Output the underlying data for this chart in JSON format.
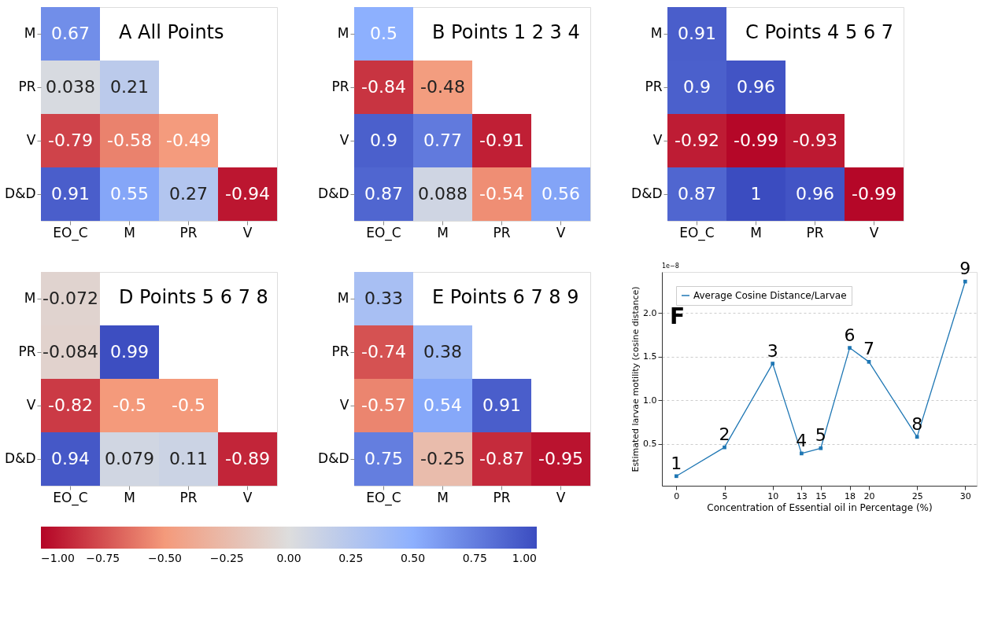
{
  "chart_data": [
    {
      "type": "heatmap",
      "title": "A All Points",
      "categories": [
        "EO_C",
        "M",
        "PR",
        "V"
      ],
      "y_categories": [
        "M",
        "PR",
        "V",
        "D&D"
      ],
      "cells": [
        [
          0.67,
          null,
          null,
          null
        ],
        [
          0.038,
          0.21,
          null,
          null
        ],
        [
          -0.79,
          -0.58,
          -0.49,
          null
        ],
        [
          0.91,
          0.55,
          0.27,
          -0.94
        ]
      ],
      "data_labels": true,
      "clim": [
        -1,
        1
      ],
      "cticks": [
        {
          "value": -1,
          "label": "−1.00"
        },
        {
          "value": -0.75,
          "label": "−0.75"
        },
        {
          "value": -0.5,
          "label": "−0.50"
        },
        {
          "value": -0.25,
          "label": "−0.25"
        },
        {
          "value": 0,
          "label": "0.00"
        },
        {
          "value": 0.25,
          "label": "0.25"
        },
        {
          "value": 0.5,
          "label": "0.50"
        },
        {
          "value": 0.75,
          "label": "0.75"
        },
        {
          "value": 1,
          "label": "1.00"
        }
      ]
    },
    {
      "type": "heatmap",
      "title": "B Points 1 2 3 4",
      "categories": [
        "EO_C",
        "M",
        "PR",
        "V"
      ],
      "y_categories": [
        "M",
        "PR",
        "V",
        "D&D"
      ],
      "cells": [
        [
          0.5,
          null,
          null,
          null
        ],
        [
          -0.84,
          -0.48,
          null,
          null
        ],
        [
          0.9,
          0.77,
          -0.91,
          null
        ],
        [
          0.87,
          0.088,
          -0.54,
          0.56
        ]
      ],
      "data_labels": true
    },
    {
      "type": "heatmap",
      "title": "C Points 4 5 6 7",
      "categories": [
        "EO_C",
        "M",
        "PR",
        "V"
      ],
      "y_categories": [
        "M",
        "PR",
        "V",
        "D&D"
      ],
      "cells": [
        [
          0.91,
          null,
          null,
          null
        ],
        [
          0.9,
          0.96,
          null,
          null
        ],
        [
          -0.92,
          -0.99,
          -0.93,
          null
        ],
        [
          0.87,
          1,
          0.96,
          -0.99
        ]
      ],
      "data_labels": true
    },
    {
      "type": "heatmap",
      "title": "D Points 5 6 7 8",
      "categories": [
        "EO_C",
        "M",
        "PR",
        "V"
      ],
      "y_categories": [
        "M",
        "PR",
        "V",
        "D&D"
      ],
      "cells": [
        [
          -0.072,
          null,
          null,
          null
        ],
        [
          -0.084,
          0.99,
          null,
          null
        ],
        [
          -0.82,
          -0.5,
          -0.5,
          null
        ],
        [
          0.94,
          0.079,
          0.11,
          -0.89
        ]
      ],
      "data_labels": true
    },
    {
      "type": "heatmap",
      "title": "E Points 6 7 8 9",
      "categories": [
        "EO_C",
        "M",
        "PR",
        "V"
      ],
      "y_categories": [
        "M",
        "PR",
        "V",
        "D&D"
      ],
      "cells": [
        [
          0.33,
          null,
          null,
          null
        ],
        [
          -0.74,
          0.38,
          null,
          null
        ],
        [
          -0.57,
          0.54,
          0.91,
          null
        ],
        [
          0.75,
          -0.25,
          -0.87,
          -0.95
        ]
      ],
      "data_labels": true
    },
    {
      "type": "line",
      "xlabel": "Concentration of Essential oil in Percentage (%)",
      "ylabel": "Estimated larvae motility (cosine distance)",
      "x": [
        0,
        5,
        10,
        13,
        15,
        18,
        20,
        25,
        30
      ],
      "series": [
        {
          "name": "Average Cosine Distance/Larvae",
          "color": "#1f77b4",
          "values": [
            0.13,
            0.46,
            1.42,
            0.39,
            0.45,
            1.6,
            1.44,
            0.58,
            2.36
          ]
        }
      ],
      "xlim": [
        -1.5,
        31.2
      ],
      "xticks": [
        0,
        5,
        10,
        13,
        15,
        18,
        20,
        25,
        30
      ],
      "ylim": [
        0.02,
        2.47
      ],
      "yticks": [
        0.5,
        {
          "value": 1,
          "label": "1.0"
        },
        1.5,
        {
          "value": 2,
          "label": "2.0"
        }
      ],
      "grid": "y",
      "marker": "square",
      "line_style": "solid",
      "legend": "top left",
      "annotations": [
        "F",
        "1e−8",
        {
          "text": "1",
          "x": 0,
          "y": 0.13
        },
        {
          "text": "2",
          "x": 5,
          "y": 0.46
        },
        {
          "text": "3",
          "x": 10,
          "y": 1.42
        },
        {
          "text": "4",
          "x": 13,
          "y": 0.39
        },
        {
          "text": "5",
          "x": 15,
          "y": 0.45
        },
        {
          "text": "6",
          "x": 18,
          "y": 1.6
        },
        {
          "text": "7",
          "x": 20,
          "y": 1.44
        },
        {
          "text": "8",
          "x": 25,
          "y": 0.58
        },
        {
          "text": "9",
          "x": 30,
          "y": 2.36
        }
      ]
    }
  ]
}
